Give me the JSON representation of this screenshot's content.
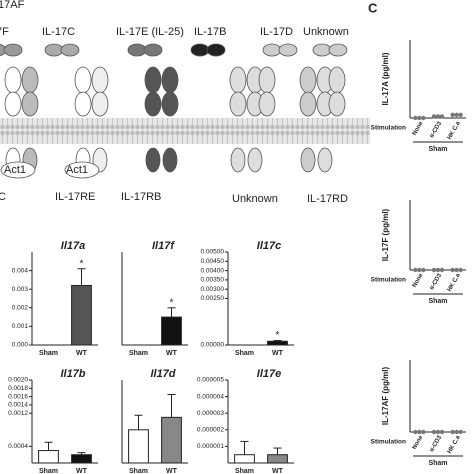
{
  "panel_label": "C",
  "diagram": {
    "ligands": [
      "17AF",
      "7F",
      "IL-17C",
      "IL-17E (IL-25)",
      "IL-17B",
      "IL-17D",
      "Unknown"
    ],
    "adaptors": [
      "Act1",
      "Act1"
    ],
    "receptors": [
      "C",
      "IL-17RE",
      "IL-17RB",
      "Unknown",
      "IL-17RD"
    ]
  },
  "chart_data": [
    {
      "type": "bar",
      "title": "Il17a",
      "categories": [
        "Sham",
        "WT"
      ],
      "values": [
        0,
        0.0032
      ],
      "errors": [
        0,
        0.0009
      ],
      "annotations": [
        null,
        "*"
      ],
      "colors": [
        "#ffffff",
        "#555555"
      ],
      "ylim": [
        0,
        0.005
      ],
      "yticks": [
        {
          "value": 0,
          "label": "0.000"
        },
        {
          "value": 0.001,
          "label": "0.001"
        },
        {
          "value": 0.002,
          "label": "0.002"
        },
        {
          "value": 0.003,
          "label": "0.003"
        },
        {
          "value": 0.004,
          "label": "0.004"
        }
      ]
    },
    {
      "type": "bar",
      "title": "Il17f",
      "categories": [
        "Sham",
        "WT"
      ],
      "values": [
        0,
        0.0015
      ],
      "errors": [
        0,
        0.0005
      ],
      "annotations": [
        null,
        "*"
      ],
      "colors": [
        "#ffffff",
        "#111111"
      ],
      "ylim": [
        0,
        0.005
      ]
    },
    {
      "type": "bar",
      "title": "Il17c",
      "categories": [
        "Sham",
        "WT"
      ],
      "values": [
        0,
        0.0002
      ],
      "errors": [
        0,
        4e-05
      ],
      "annotations": [
        null,
        "*"
      ],
      "colors": [
        "#ffffff",
        "#111111"
      ],
      "ylim": [
        0,
        0.005
      ],
      "yticks": [
        {
          "value": 0,
          "label": "0.00000"
        },
        {
          "value": 0.0025,
          "label": "0.00250"
        },
        {
          "value": 0.003,
          "label": "0.00300"
        },
        {
          "value": 0.0035,
          "label": "0.00350"
        },
        {
          "value": 0.004,
          "label": "0.00400"
        },
        {
          "value": 0.0045,
          "label": "0.00450"
        },
        {
          "value": 0.005,
          "label": "0.00500"
        }
      ]
    },
    {
      "type": "bar",
      "title": "Il17b",
      "categories": [
        "Sham",
        "WT"
      ],
      "values": [
        0.0003,
        0.0002
      ],
      "errors": [
        0.0002,
        5e-05
      ],
      "colors": [
        "#ffffff",
        "#111111"
      ],
      "ylim": [
        0,
        0.002
      ],
      "yticks": [
        {
          "value": 0.0004,
          "label": "0.0004"
        },
        {
          "value": 0.0012,
          "label": "0.0012"
        },
        {
          "value": 0.0014,
          "label": "0.0014"
        },
        {
          "value": 0.0016,
          "label": "0.0016"
        },
        {
          "value": 0.0018,
          "label": "0.0018"
        },
        {
          "value": 0.002,
          "label": "0.0020"
        }
      ]
    },
    {
      "type": "bar",
      "title": "Il17d",
      "categories": [
        "Sham",
        "WT"
      ],
      "values": [
        0.8,
        1.1
      ],
      "errors": [
        0.35,
        0.55
      ],
      "colors": [
        "#ffffff",
        "#888888"
      ],
      "ylim": [
        0,
        2
      ]
    },
    {
      "type": "bar",
      "title": "Il17e",
      "categories": [
        "Sham",
        "WT"
      ],
      "values": [
        5e-07,
        5e-07
      ],
      "errors": [
        8e-07,
        4e-07
      ],
      "colors": [
        "#ffffff",
        "#888888"
      ],
      "ylim": [
        0,
        5e-06
      ],
      "yticks": [
        {
          "value": 1e-06,
          "label": "0.000001"
        },
        {
          "value": 2e-06,
          "label": "0.000002"
        },
        {
          "value": 3e-06,
          "label": "0.000003"
        },
        {
          "value": 4e-06,
          "label": "0.000004"
        },
        {
          "value": 5e-06,
          "label": "0.000005"
        }
      ]
    },
    {
      "type": "dot",
      "y_label": "IL-17A (pg/ml)",
      "x_label": "Stimulation",
      "group": "Sham",
      "categories": [
        "None",
        "α-CD3",
        "HK C.a"
      ],
      "values": [
        0,
        2,
        4
      ],
      "color": "#777777",
      "ylim": [
        0,
        100
      ]
    },
    {
      "type": "dot",
      "y_label": "IL-17F (pg/ml)",
      "x_label": "Stimulation",
      "group": "Sham",
      "categories": [
        "None",
        "α-CD3",
        "HK C.a"
      ],
      "values": [
        0,
        0,
        0
      ],
      "color": "#777777",
      "ylim": [
        0,
        100
      ]
    },
    {
      "type": "dot",
      "y_label": "IL-17AF (pg/ml)",
      "x_label": "Stimulation",
      "group": "Sham",
      "categories": [
        "None",
        "α-CD3",
        "HK C.a"
      ],
      "values": [
        0,
        0,
        0
      ],
      "color": "#777777",
      "ylim": [
        0,
        100
      ]
    }
  ]
}
